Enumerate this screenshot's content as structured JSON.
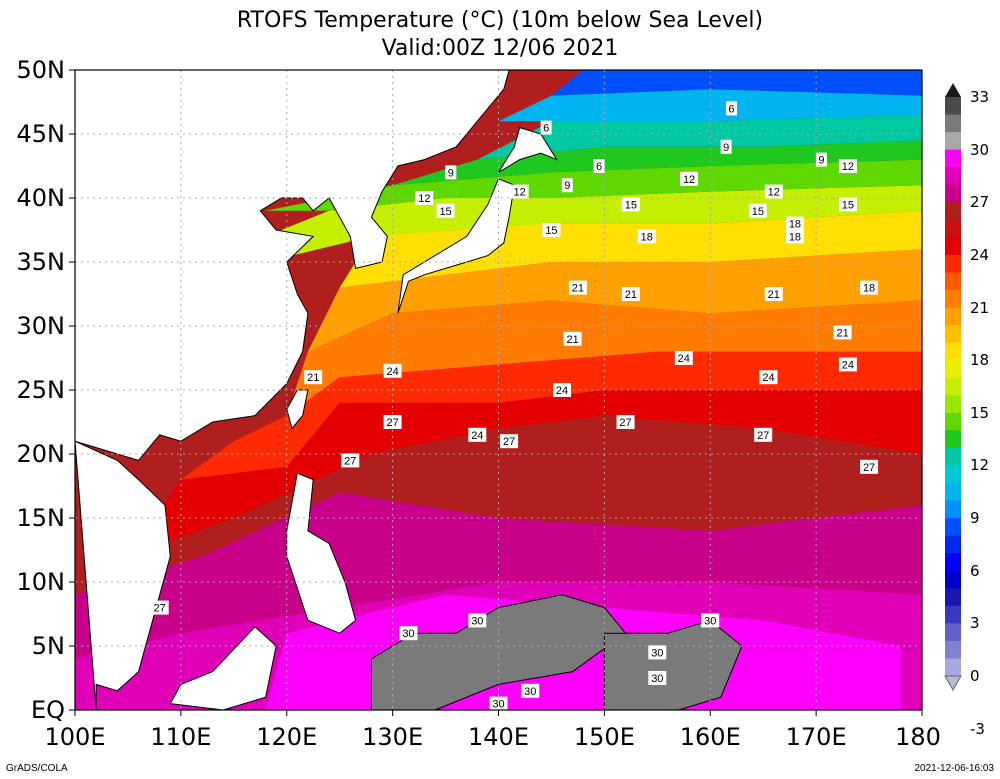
{
  "title": "RTOFS Temperature (°C) (10m below Sea Level)",
  "subtitle": "Valid:00Z 12/06 2021",
  "lat_labels": [
    "50N",
    "45N",
    "40N",
    "35N",
    "30N",
    "25N",
    "20N",
    "15N",
    "10N",
    "5N",
    "EQ"
  ],
  "lon_labels": [
    "100E",
    "110E",
    "120E",
    "130E",
    "140E",
    "150E",
    "160E",
    "170E",
    "180"
  ],
  "colorbar_labels": [
    "33",
    "30",
    "27",
    "24",
    "21",
    "18",
    "15",
    "12",
    "9",
    "6",
    "3",
    "0",
    "-3"
  ],
  "contour_labels": [
    {
      "text": "6",
      "lon": 144.5,
      "lat": 45.5
    },
    {
      "text": "6",
      "lon": 162,
      "lat": 47
    },
    {
      "text": "6",
      "lon": 149.5,
      "lat": 42.5
    },
    {
      "text": "9",
      "lon": 135.5,
      "lat": 42
    },
    {
      "text": "9",
      "lon": 161.5,
      "lat": 44
    },
    {
      "text": "9",
      "lon": 170.5,
      "lat": 43
    },
    {
      "text": "9",
      "lon": 146.5,
      "lat": 41
    },
    {
      "text": "12",
      "lon": 133,
      "lat": 40
    },
    {
      "text": "12",
      "lon": 142,
      "lat": 40.5
    },
    {
      "text": "12",
      "lon": 158,
      "lat": 41.5
    },
    {
      "text": "12",
      "lon": 166,
      "lat": 40.5
    },
    {
      "text": "12",
      "lon": 173,
      "lat": 42.5
    },
    {
      "text": "15",
      "lon": 135,
      "lat": 39
    },
    {
      "text": "15",
      "lon": 152.5,
      "lat": 39.5
    },
    {
      "text": "15",
      "lon": 164.5,
      "lat": 39
    },
    {
      "text": "15",
      "lon": 173,
      "lat": 39.5
    },
    {
      "text": "15",
      "lon": 145,
      "lat": 37.5
    },
    {
      "text": "18",
      "lon": 154,
      "lat": 37
    },
    {
      "text": "18",
      "lon": 168,
      "lat": 38
    },
    {
      "text": "18",
      "lon": 168,
      "lat": 37
    },
    {
      "text": "18",
      "lon": 175,
      "lat": 33
    },
    {
      "text": "21",
      "lon": 147.5,
      "lat": 33
    },
    {
      "text": "21",
      "lon": 152.5,
      "lat": 32.5
    },
    {
      "text": "21",
      "lon": 166,
      "lat": 32.5
    },
    {
      "text": "21",
      "lon": 147,
      "lat": 29
    },
    {
      "text": "21",
      "lon": 172.5,
      "lat": 29.5
    },
    {
      "text": "21",
      "lon": 122.5,
      "lat": 26
    },
    {
      "text": "24",
      "lon": 130,
      "lat": 26.5
    },
    {
      "text": "24",
      "lon": 157.5,
      "lat": 27.5
    },
    {
      "text": "24",
      "lon": 165.5,
      "lat": 26
    },
    {
      "text": "24",
      "lon": 173,
      "lat": 27
    },
    {
      "text": "24",
      "lon": 146,
      "lat": 25
    },
    {
      "text": "24",
      "lon": 138,
      "lat": 21.5
    },
    {
      "text": "27",
      "lon": 152,
      "lat": 22.5
    },
    {
      "text": "27",
      "lon": 165,
      "lat": 21.5
    },
    {
      "text": "27",
      "lon": 141,
      "lat": 21
    },
    {
      "text": "27",
      "lon": 130,
      "lat": 22.5
    },
    {
      "text": "27",
      "lon": 126,
      "lat": 19.5
    },
    {
      "text": "27",
      "lon": 175,
      "lat": 19
    },
    {
      "text": "27",
      "lon": 108,
      "lat": 8
    },
    {
      "text": "30",
      "lon": 131.5,
      "lat": 6
    },
    {
      "text": "30",
      "lon": 138,
      "lat": 7
    },
    {
      "text": "30",
      "lon": 160,
      "lat": 7
    },
    {
      "text": "30",
      "lon": 155,
      "lat": 4.5
    },
    {
      "text": "30",
      "lon": 155,
      "lat": 2.5
    },
    {
      "text": "30",
      "lon": 140,
      "lat": 0.5
    },
    {
      "text": "30",
      "lon": 143,
      "lat": 1.5
    }
  ],
  "colors": {
    "colorbar": [
      "#4a4a4a",
      "#7a7a7a",
      "#a8a8a8",
      "#ff00ff",
      "#e000b8",
      "#c8008a",
      "#b11e1e",
      "#c81212",
      "#e40000",
      "#ff2a00",
      "#ff5a00",
      "#ff7c00",
      "#ffa000",
      "#ffbe00",
      "#ffdf00",
      "#e8f000",
      "#c4ef00",
      "#9ae600",
      "#5ed800",
      "#1ec81e",
      "#00c8a0",
      "#00c8d8",
      "#00b4f0",
      "#0090ff",
      "#0050ff",
      "#0028f0",
      "#0000ff",
      "#0000c8",
      "#1818b0",
      "#3838c0",
      "#6060c8",
      "#8080d0",
      "#a8a8e0"
    ]
  },
  "footer": {
    "credit": "GrADS/COLA",
    "stamp": "2021-12-06-16:03"
  }
}
